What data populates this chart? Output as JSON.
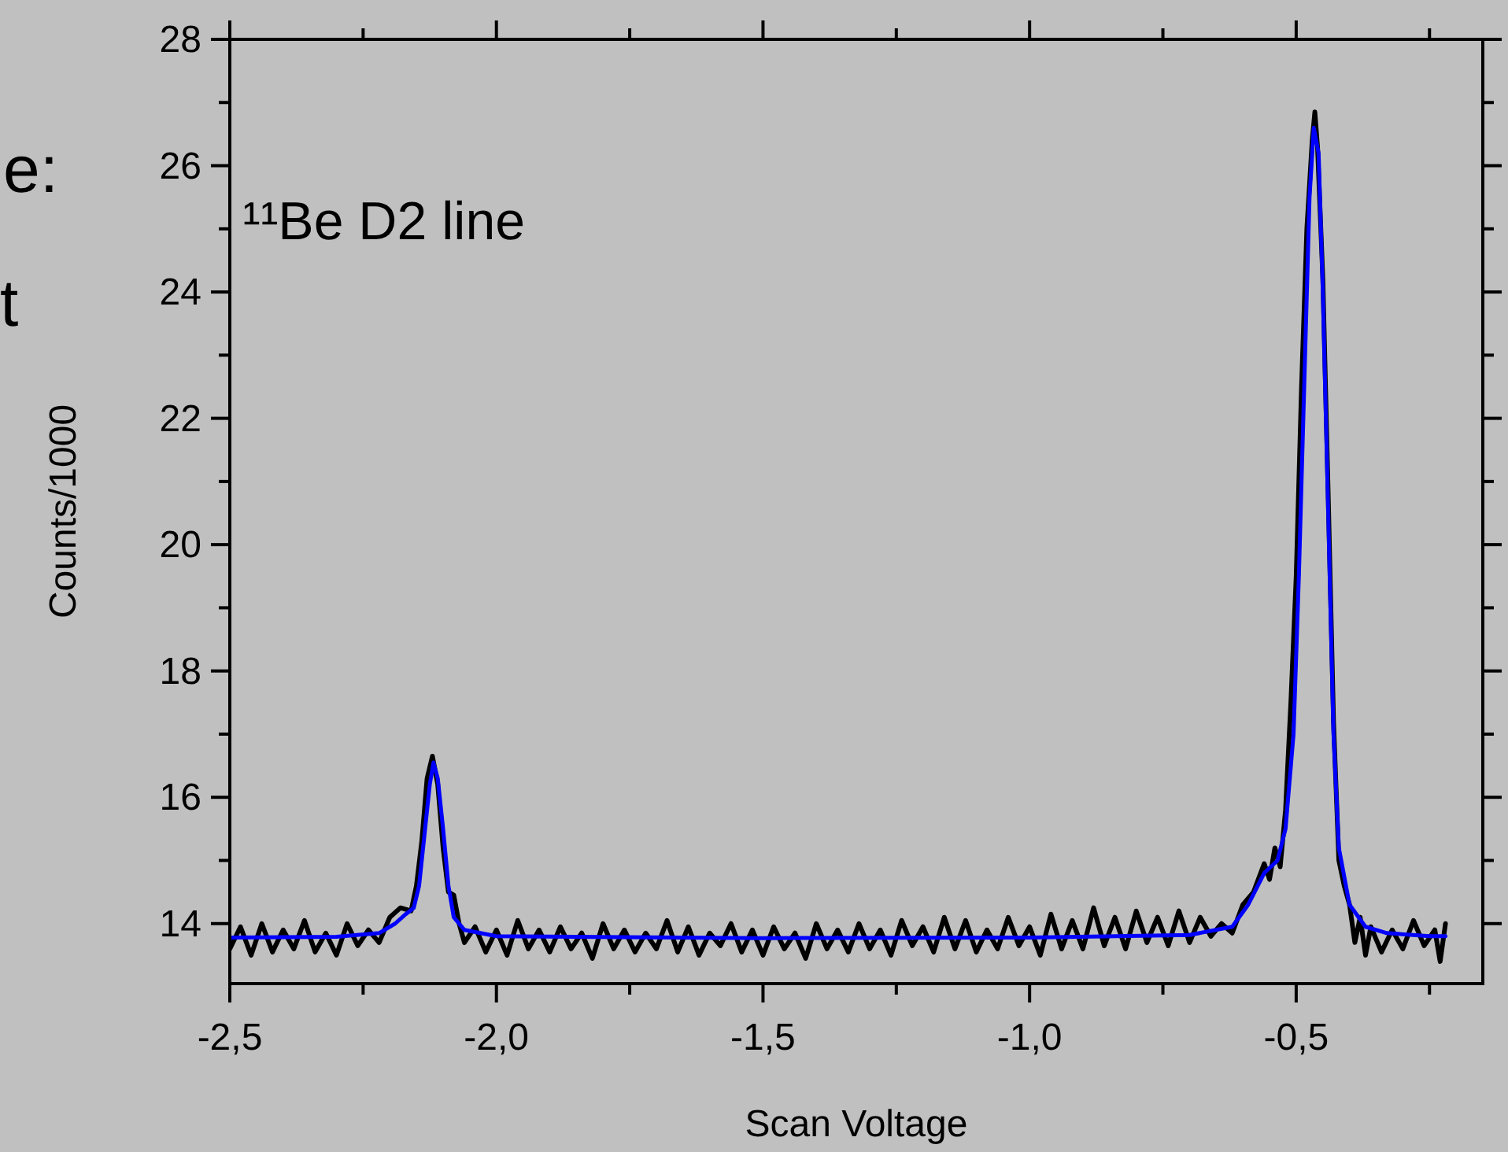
{
  "chart_data": {
    "type": "line",
    "xlabel": "Scan Voltage",
    "ylabel": "Counts/1000",
    "annotations": [
      "e:",
      "t",
      {
        "text": "¹¹Be D2 line"
      }
    ],
    "xlim": [
      -2.5,
      -0.15
    ],
    "ylim": [
      13.05,
      28
    ],
    "xticks": [
      {
        "value": -2.5,
        "label": "-2,5"
      },
      {
        "value": -2.25,
        "label": null
      },
      {
        "value": -2.0,
        "label": "-2,0"
      },
      {
        "value": -1.75,
        "label": null
      },
      {
        "value": -1.5,
        "label": "-1,5"
      },
      {
        "value": -1.25,
        "label": null
      },
      {
        "value": -1.0,
        "label": "-1,0"
      },
      {
        "value": -0.75,
        "label": null
      },
      {
        "value": -0.5,
        "label": "-0,5"
      },
      {
        "value": -0.25,
        "label": null
      }
    ],
    "yticks": [
      14,
      {
        "value": 15,
        "label": null
      },
      16,
      {
        "value": 17,
        "label": null
      },
      18,
      {
        "value": 19,
        "label": null
      },
      20,
      {
        "value": 21,
        "label": null
      },
      22,
      {
        "value": 23,
        "label": null
      },
      24,
      {
        "value": 25,
        "label": null
      },
      26,
      {
        "value": 27,
        "label": null
      },
      28
    ],
    "grid": false,
    "marker": "none",
    "line_style": "solid",
    "series": [
      {
        "color": "#000000",
        "x": [
          -2.5,
          -2.48,
          -2.46,
          -2.44,
          -2.42,
          -2.4,
          -2.38,
          -2.36,
          -2.34,
          -2.32,
          -2.3,
          -2.28,
          -2.26,
          -2.24,
          -2.22,
          -2.2,
          -2.18,
          -2.16,
          -2.15,
          -2.14,
          -2.13,
          -2.12,
          -2.11,
          -2.1,
          -2.09,
          -2.08,
          -2.07,
          -2.06,
          -2.04,
          -2.02,
          -2.0,
          -1.98,
          -1.96,
          -1.94,
          -1.92,
          -1.9,
          -1.88,
          -1.86,
          -1.84,
          -1.82,
          -1.8,
          -1.78,
          -1.76,
          -1.74,
          -1.72,
          -1.7,
          -1.68,
          -1.66,
          -1.64,
          -1.62,
          -1.6,
          -1.58,
          -1.56,
          -1.54,
          -1.52,
          -1.5,
          -1.48,
          -1.46,
          -1.44,
          -1.42,
          -1.4,
          -1.38,
          -1.36,
          -1.34,
          -1.32,
          -1.3,
          -1.28,
          -1.26,
          -1.24,
          -1.22,
          -1.2,
          -1.18,
          -1.16,
          -1.14,
          -1.12,
          -1.1,
          -1.08,
          -1.06,
          -1.04,
          -1.02,
          -1.0,
          -0.98,
          -0.96,
          -0.94,
          -0.92,
          -0.9,
          -0.88,
          -0.86,
          -0.84,
          -0.82,
          -0.8,
          -0.78,
          -0.76,
          -0.74,
          -0.72,
          -0.7,
          -0.68,
          -0.66,
          -0.64,
          -0.62,
          -0.6,
          -0.58,
          -0.56,
          -0.55,
          -0.54,
          -0.53,
          -0.52,
          -0.51,
          -0.5,
          -0.49,
          -0.48,
          -0.47,
          -0.465,
          -0.46,
          -0.45,
          -0.44,
          -0.43,
          -0.42,
          -0.41,
          -0.4,
          -0.39,
          -0.38,
          -0.37,
          -0.36,
          -0.34,
          -0.32,
          -0.3,
          -0.28,
          -0.26,
          -0.24,
          -0.23,
          -0.22
        ],
        "values": [
          13.6,
          13.95,
          13.5,
          14.0,
          13.55,
          13.9,
          13.6,
          14.05,
          13.55,
          13.85,
          13.5,
          14.0,
          13.65,
          13.9,
          13.7,
          14.1,
          14.25,
          14.2,
          14.6,
          15.3,
          16.3,
          16.65,
          16.2,
          15.2,
          14.5,
          14.45,
          14.0,
          13.7,
          13.95,
          13.55,
          13.9,
          13.5,
          14.05,
          13.6,
          13.9,
          13.55,
          13.95,
          13.6,
          13.85,
          13.45,
          14.0,
          13.6,
          13.9,
          13.55,
          13.85,
          13.6,
          14.05,
          13.55,
          13.95,
          13.5,
          13.85,
          13.65,
          14.0,
          13.55,
          13.9,
          13.5,
          13.95,
          13.6,
          13.85,
          13.45,
          14.0,
          13.6,
          13.9,
          13.55,
          14.0,
          13.6,
          13.9,
          13.5,
          14.05,
          13.65,
          13.95,
          13.55,
          14.1,
          13.6,
          14.05,
          13.55,
          13.9,
          13.6,
          14.1,
          13.65,
          13.95,
          13.5,
          14.15,
          13.6,
          14.05,
          13.6,
          14.25,
          13.65,
          14.1,
          13.6,
          14.2,
          13.7,
          14.1,
          13.65,
          14.2,
          13.7,
          14.1,
          13.8,
          14.0,
          13.85,
          14.3,
          14.5,
          14.95,
          14.7,
          15.2,
          14.9,
          15.8,
          17.5,
          19.5,
          22.5,
          25.0,
          26.4,
          26.85,
          26.3,
          24.2,
          20.8,
          17.2,
          15.0,
          14.6,
          14.3,
          13.7,
          14.1,
          13.5,
          13.95,
          13.55,
          13.9,
          13.6,
          14.05,
          13.65,
          13.9,
          13.4,
          14.0
        ]
      },
      {
        "color": "#0000ff",
        "x": [
          -2.5,
          -2.3,
          -2.22,
          -2.19,
          -2.17,
          -2.155,
          -2.145,
          -2.135,
          -2.125,
          -2.118,
          -2.11,
          -2.1,
          -2.09,
          -2.08,
          -2.06,
          -2.0,
          -1.5,
          -1.0,
          -0.7,
          -0.62,
          -0.59,
          -0.56,
          -0.535,
          -0.52,
          -0.505,
          -0.495,
          -0.485,
          -0.475,
          -0.467,
          -0.458,
          -0.45,
          -0.44,
          -0.43,
          -0.42,
          -0.4,
          -0.37,
          -0.33,
          -0.25,
          -0.22
        ],
        "values": [
          13.78,
          13.79,
          13.85,
          14.0,
          14.15,
          14.25,
          14.6,
          15.4,
          16.2,
          16.55,
          16.3,
          15.5,
          14.6,
          14.1,
          13.9,
          13.8,
          13.77,
          13.78,
          13.82,
          13.95,
          14.3,
          14.8,
          15.0,
          15.5,
          17.0,
          19.5,
          22.5,
          25.5,
          26.6,
          26.2,
          24.0,
          20.5,
          17.0,
          15.2,
          14.3,
          13.95,
          13.85,
          13.8,
          13.8
        ]
      }
    ]
  }
}
